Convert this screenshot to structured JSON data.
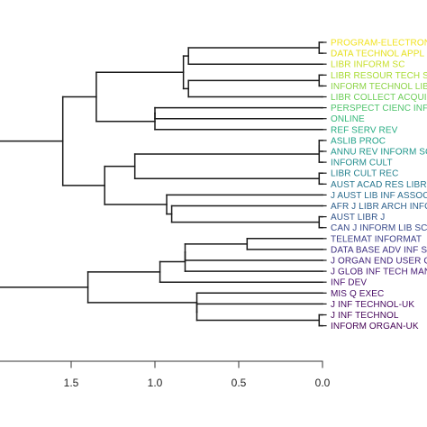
{
  "colors": {
    "branch": "#1a1a1a",
    "axis": "#333333",
    "background": "#ffffff"
  },
  "axis": {
    "ticks": [
      {
        "value": 1.5,
        "label": "1.5"
      },
      {
        "value": 1.0,
        "label": "1.0"
      },
      {
        "value": 0.5,
        "label": "0.5"
      },
      {
        "value": 0.0,
        "label": "0.0"
      }
    ],
    "reversed": true
  },
  "leaves": [
    {
      "label": "PROGRAM-ELECTRON",
      "color": "#f2e31f"
    },
    {
      "label": "DATA TECHNOL APPL",
      "color": "#e5e01c"
    },
    {
      "label": "LIBR INFORM SC",
      "color": "#c8df28"
    },
    {
      "label": "LIBR RESOUR TECH S",
      "color": "#a8db33"
    },
    {
      "label": "INFORM TECHNOL LIB",
      "color": "#8cd446"
    },
    {
      "label": "LIBR COLLECT ACQUI",
      "color": "#6ece58"
    },
    {
      "label": "PERSPECT CIENC INF",
      "color": "#4ec36b"
    },
    {
      "label": "ONLINE",
      "color": "#35b779"
    },
    {
      "label": "REF SERV REV",
      "color": "#25ac82"
    },
    {
      "label": "ASLIB PROC",
      "color": "#1fa188"
    },
    {
      "label": "ANNU REV INFORM SC",
      "color": "#1f968b"
    },
    {
      "label": "INFORM CULT",
      "color": "#218c8d"
    },
    {
      "label": "LIBR CULT REC",
      "color": "#24818e"
    },
    {
      "label": "AUST ACAD RES LIBR",
      "color": "#27768e"
    },
    {
      "label": "J AUST LIB INF ASSOC",
      "color": "#2b6c8e"
    },
    {
      "label": "AFR J LIBR ARCH INFO",
      "color": "#2f618d"
    },
    {
      "label": "AUST LIBR J",
      "color": "#33568b"
    },
    {
      "label": "CAN J INFORM LIB SC",
      "color": "#37498a"
    },
    {
      "label": "TELEMAT INFORMAT",
      "color": "#3b3d87"
    },
    {
      "label": "DATA BASE ADV INF S",
      "color": "#3e3082"
    },
    {
      "label": "J ORGAN END USER C",
      "color": "#41237b"
    },
    {
      "label": "J GLOB INF TECH MAN",
      "color": "#441873"
    },
    {
      "label": "INF DEV",
      "color": "#460d6a"
    },
    {
      "label": "MIS Q EXEC",
      "color": "#470b66"
    },
    {
      "label": "J INF TECHNOL-UK",
      "color": "#46075f"
    },
    {
      "label": "J INF TECHNOL",
      "color": "#450459"
    },
    {
      "label": "INFORM ORGAN-UK",
      "color": "#440154"
    }
  ],
  "merges": [
    {
      "a": 0,
      "b": 1,
      "height": 0.02
    },
    {
      "a": "L2",
      "b": "N0",
      "height": 0.8
    },
    {
      "a": 3,
      "b": 4,
      "height": 0.02
    },
    {
      "a": "N2",
      "b": 5,
      "height": 0.8
    },
    {
      "a": "N1",
      "b": "N3",
      "height": 0.83
    },
    {
      "a": 6,
      "b": 7,
      "height": 1.0
    },
    {
      "a": "N5",
      "b": 8,
      "height": 1.0
    },
    {
      "a": "N4",
      "b": "N6",
      "height": 1.35
    },
    {
      "a": 9,
      "b": 10,
      "height": 0.02
    },
    {
      "a": "N8",
      "b": 11,
      "height": 0.02
    },
    {
      "a": 12,
      "b": 13,
      "height": 0.02
    },
    {
      "a": "N9",
      "b": "N10",
      "height": 1.12
    },
    {
      "a": 16,
      "b": 17,
      "height": 0.02
    },
    {
      "a": 15,
      "b": "N12",
      "height": 0.9
    },
    {
      "a": 14,
      "b": "N13",
      "height": 0.93
    },
    {
      "a": "N11",
      "b": "N14",
      "height": 1.3
    },
    {
      "a": "N7",
      "b": "N15",
      "height": 1.55
    },
    {
      "a": 18,
      "b": 19,
      "height": 0.45
    },
    {
      "a": "N17",
      "b": 20,
      "height": 0.82
    },
    {
      "a": "N18",
      "b": 21,
      "height": 0.82
    },
    {
      "a": "N19",
      "b": 22,
      "height": 0.97
    },
    {
      "a": 25,
      "b": 26,
      "height": 0.02
    },
    {
      "a": 24,
      "b": "N21",
      "height": 0.75
    },
    {
      "a": 23,
      "b": "N22",
      "height": 0.75
    },
    {
      "a": "N20",
      "b": "N23",
      "height": 1.4
    },
    {
      "a": "N16",
      "b": "N24",
      "height": 1.95
    }
  ]
}
